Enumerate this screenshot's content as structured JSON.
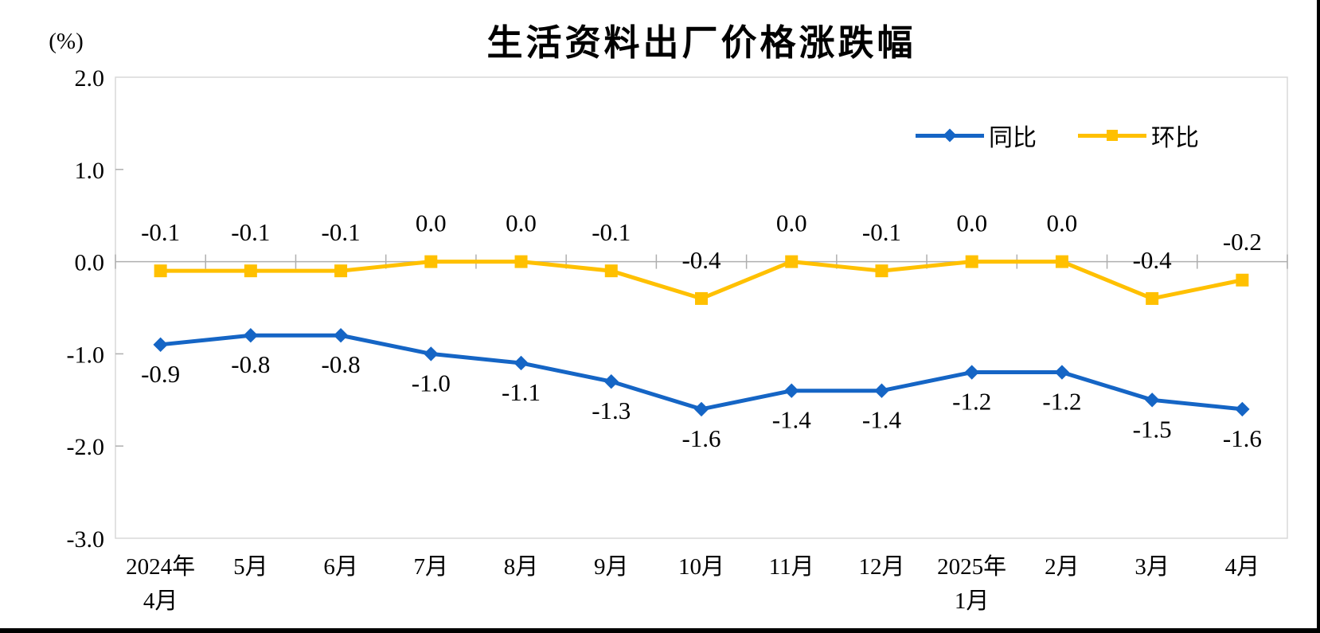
{
  "chart_data": {
    "type": "line",
    "title": "生活资料出厂价格涨跌幅",
    "unit_label": "(%)",
    "categories": [
      [
        "2024年",
        "4月"
      ],
      [
        "5月"
      ],
      [
        "6月"
      ],
      [
        "7月"
      ],
      [
        "8月"
      ],
      [
        "9月"
      ],
      [
        "10月"
      ],
      [
        "11月"
      ],
      [
        "12月"
      ],
      [
        "2025年",
        "1月"
      ],
      [
        "2月"
      ],
      [
        "3月"
      ],
      [
        "4月"
      ]
    ],
    "series": [
      {
        "name": "同比",
        "key": "tongbi",
        "color": "#1565C5",
        "marker": "diamond",
        "label_position": "below",
        "values": [
          -0.9,
          -0.8,
          -0.8,
          -1.0,
          -1.1,
          -1.3,
          -1.6,
          -1.4,
          -1.4,
          -1.2,
          -1.2,
          -1.5,
          -1.6
        ],
        "labels": [
          "-0.9",
          "-0.8",
          "-0.8",
          "-1.0",
          "-1.1",
          "-1.3",
          "-1.6",
          "-1.4",
          "-1.4",
          "-1.2",
          "-1.2",
          "-1.5",
          "-1.6"
        ]
      },
      {
        "name": "环比",
        "key": "huanbi",
        "color": "#FFC000",
        "marker": "square",
        "label_position": "above",
        "values": [
          -0.1,
          -0.1,
          -0.1,
          0.0,
          0.0,
          -0.1,
          -0.4,
          0.0,
          -0.1,
          0.0,
          0.0,
          -0.4,
          -0.2
        ],
        "labels": [
          "-0.1",
          "-0.1",
          "-0.1",
          "0.0",
          "0.0",
          "-0.1",
          "-0.4",
          "0.0",
          "-0.1",
          "0.0",
          "0.0",
          "-0.4",
          "-0.2"
        ]
      }
    ],
    "y_axis": {
      "min": -3.0,
      "max": 2.0,
      "tick_step": 1.0,
      "tick_values": [
        2.0,
        1.0,
        0.0,
        -1.0,
        -2.0,
        -3.0
      ],
      "tick_labels": [
        "2.0",
        "1.0",
        "0.0",
        "-1.0",
        "-2.0",
        "-3.0"
      ]
    },
    "legend_position": "top-right",
    "grid": "zero-line-only",
    "axis_colors": {
      "plot_border": "#D9D9D9",
      "zero_line": "#AFAFAF",
      "tick": "#AFAFAF"
    }
  }
}
